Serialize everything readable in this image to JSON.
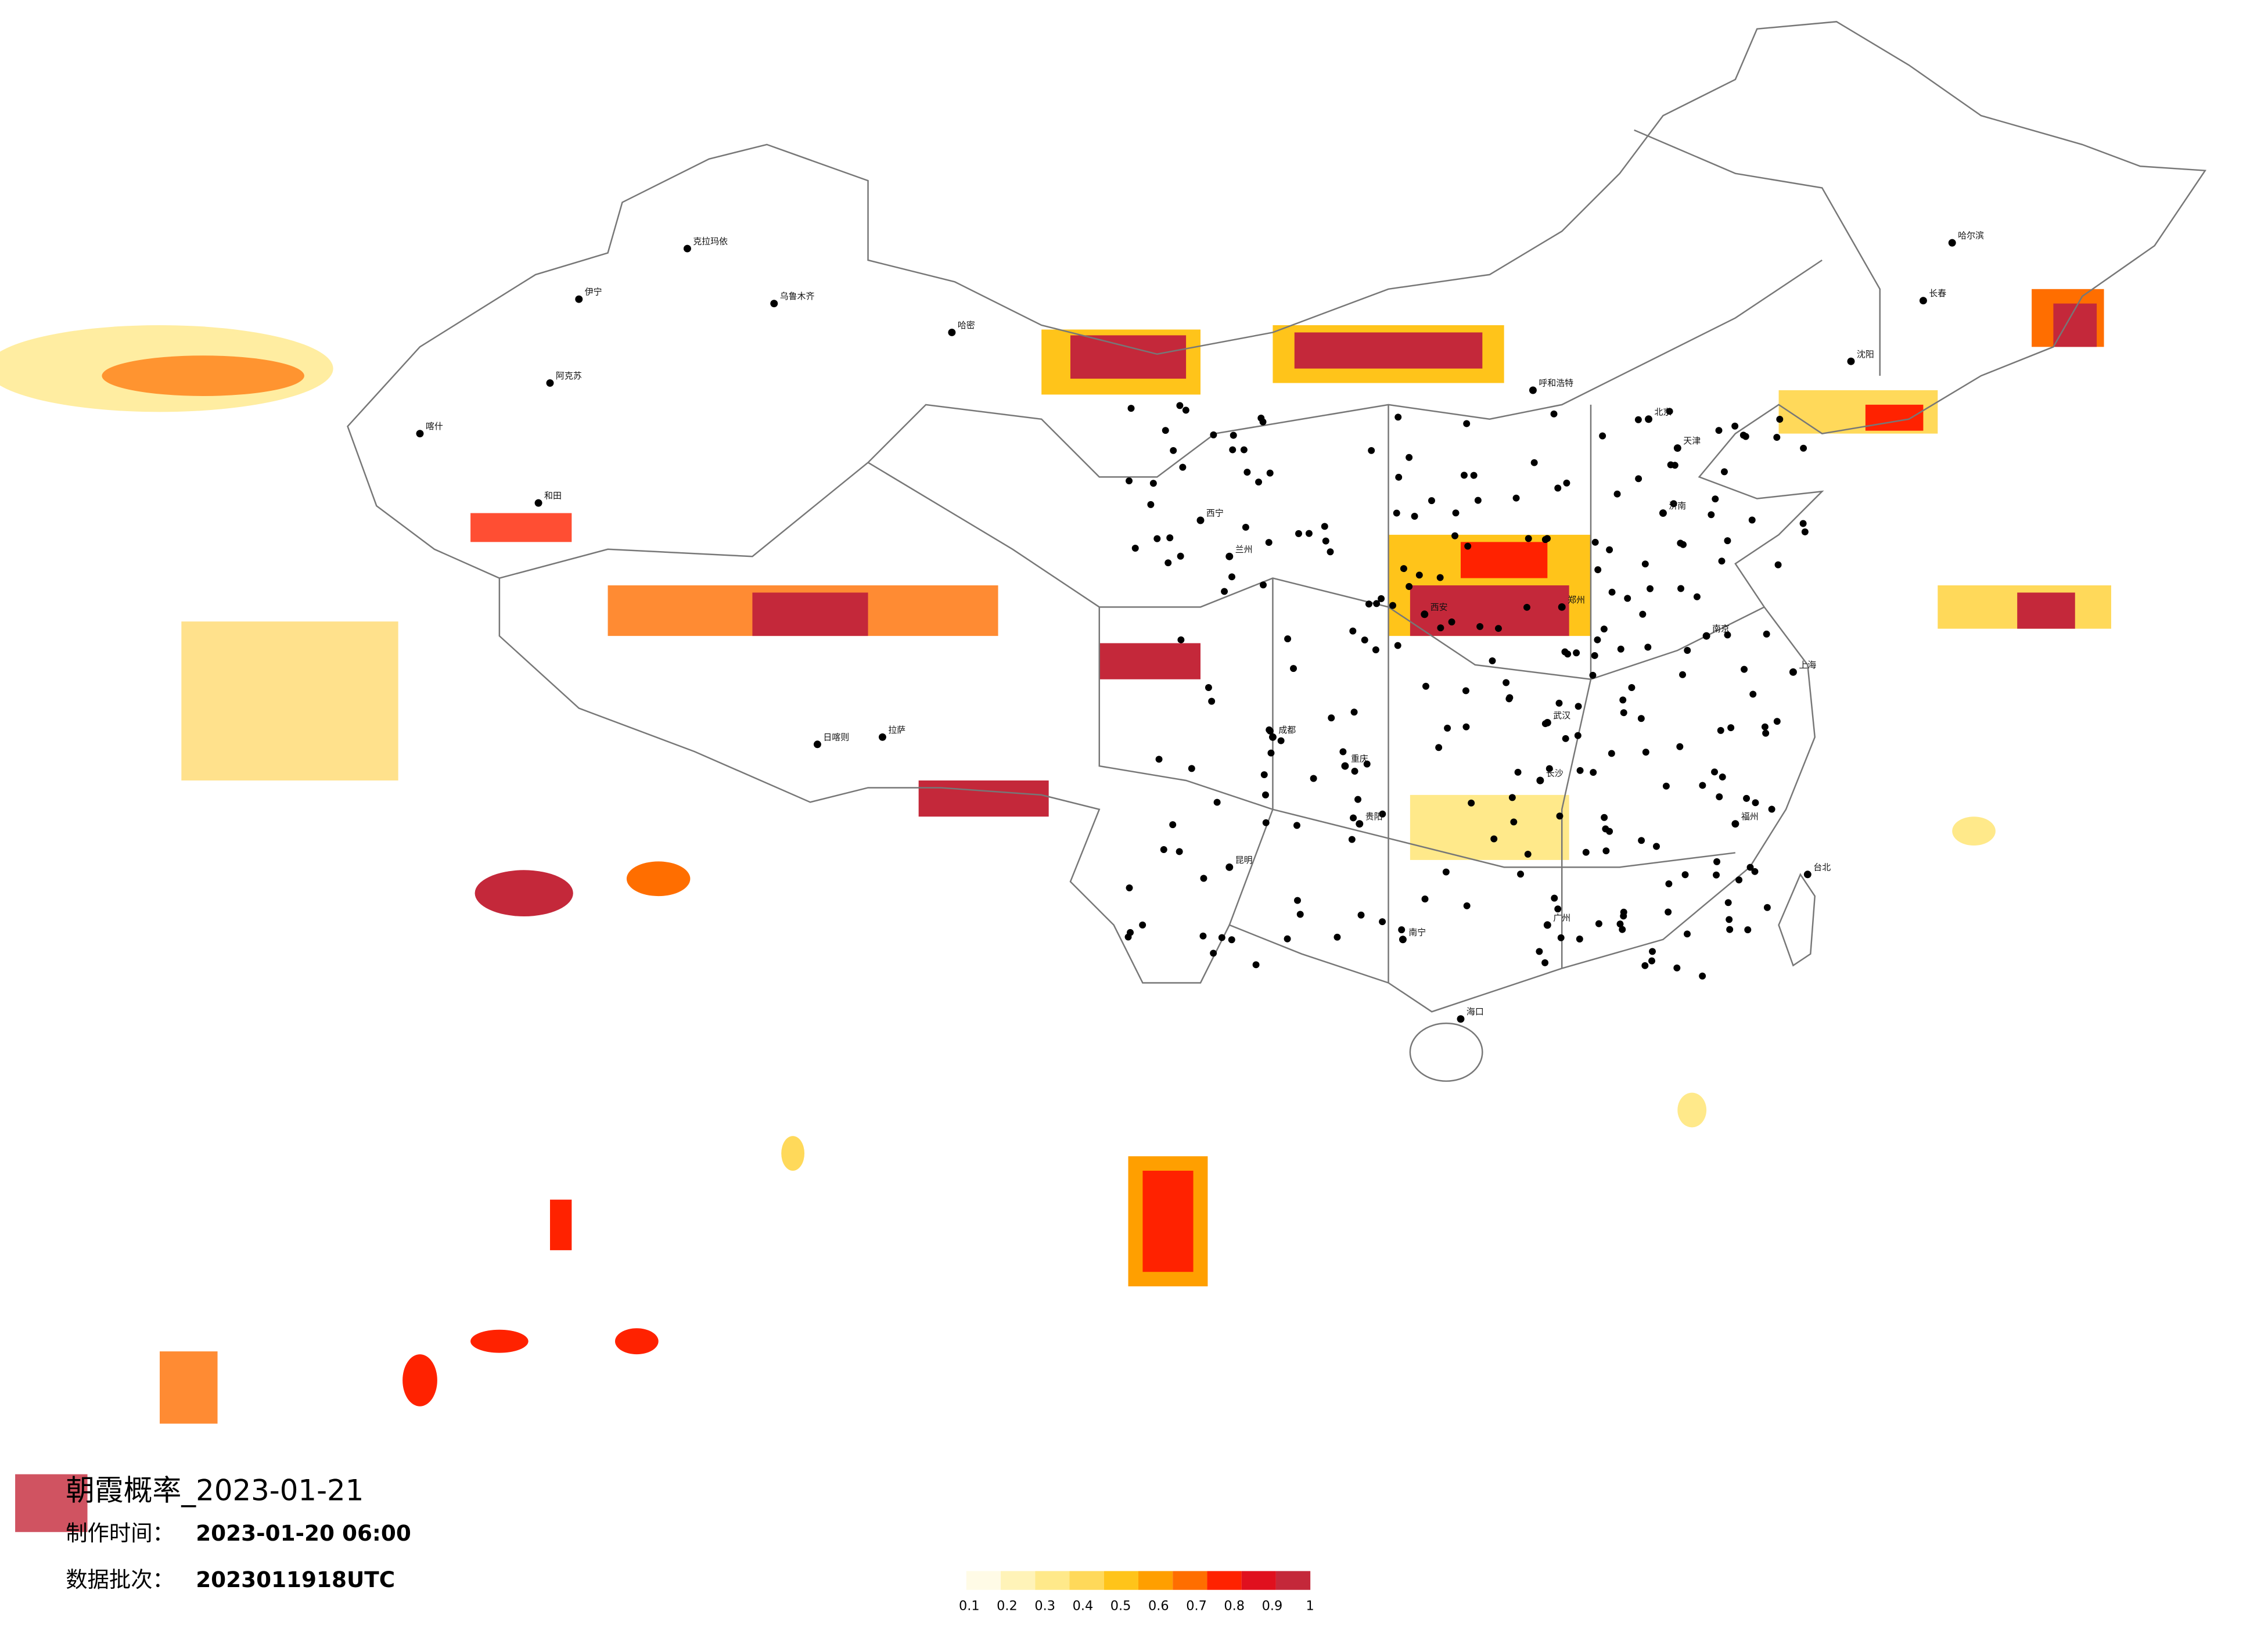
{
  "header": {
    "title": "朝霞概率_2023-01-21",
    "made_label": "制作时间：",
    "made_value": "2023-01-20 06:00",
    "batch_label": "数据批次：",
    "batch_value": "2023011918UTC"
  },
  "legend": {
    "colors": [
      "#fffbe6",
      "#fff3b8",
      "#ffe98a",
      "#ffd95a",
      "#ffc41a",
      "#ff9f00",
      "#ff6e00",
      "#ff2200",
      "#e0101e",
      "#c4283a"
    ],
    "ticks": [
      "0.1",
      "0.2",
      "0.3",
      "0.4",
      "0.5",
      "0.6",
      "0.7",
      "0.8",
      "0.9",
      "1"
    ]
  },
  "cities": [
    "克拉玛依",
    "伊宁",
    "乌鲁木齐",
    "阿克苏",
    "喀什",
    "和田",
    "哈密",
    "拉萨",
    "日喀则",
    "西宁",
    "兰州",
    "呼和浩特",
    "北京",
    "天津",
    "哈尔滨",
    "长春",
    "沈阳",
    "济南",
    "郑州",
    "西安",
    "成都",
    "重庆",
    "武汉",
    "长沙",
    "南京",
    "上海",
    "昆明",
    "贵阳",
    "广州",
    "南宁",
    "福州",
    "海口",
    "台北"
  ]
}
